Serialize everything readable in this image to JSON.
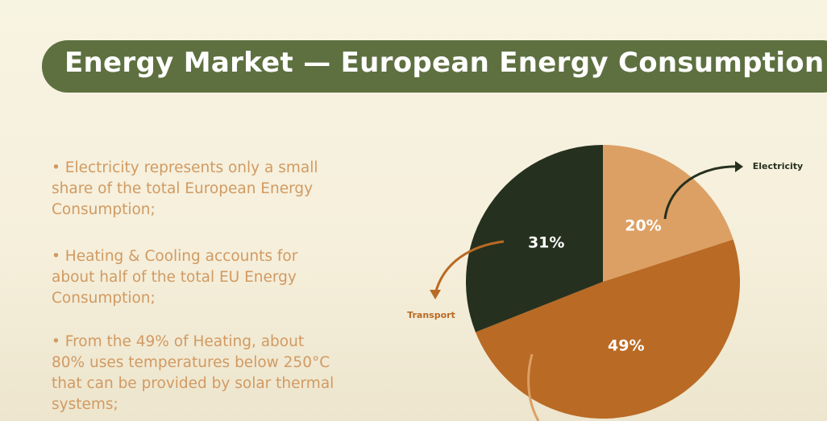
{
  "title": "Energy Market — European Energy Consumption",
  "bullets": [
    "• Electricity represents only a small share of the total European Energy Consumption;",
    "• Heating & Cooling accounts for about half of the total EU Energy Consumption;",
    "• From the 49% of Heating, about 80% uses temperatures below 250°C that can be provided by solar thermal systems;"
  ],
  "chart_data": {
    "type": "pie",
    "categories": [
      "Electricity",
      null,
      "Transport"
    ],
    "values": [
      20,
      49,
      31
    ],
    "value_labels": [
      "20%",
      "49%",
      "31%"
    ],
    "colors": [
      "#dca064",
      "#b96a24",
      "#26301e"
    ]
  }
}
